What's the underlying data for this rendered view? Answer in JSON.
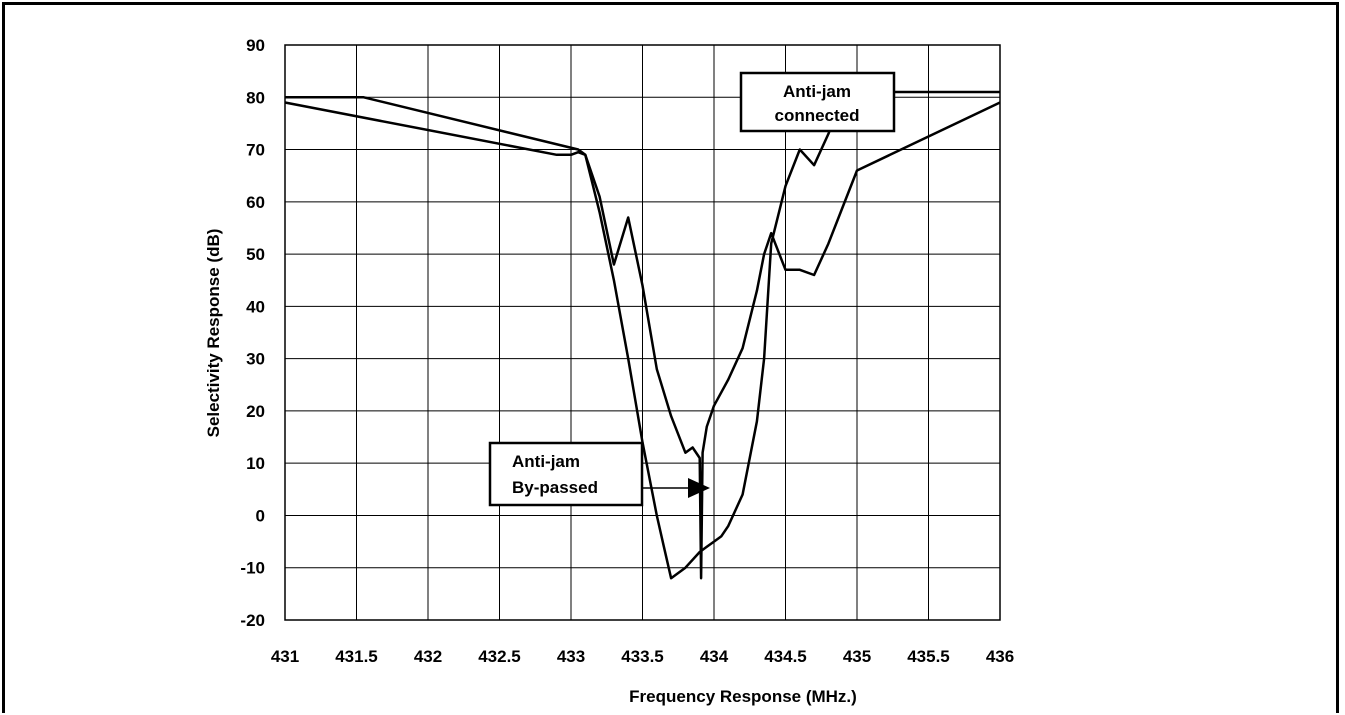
{
  "chart_data": {
    "type": "line",
    "title": "",
    "xlabel": "Frequency Response (MHz.)",
    "ylabel": "Selectivity Response (dB)",
    "xlim": [
      431,
      436
    ],
    "ylim": [
      -20,
      90
    ],
    "xticks": [
      "431",
      "431.5",
      "432",
      "432.5",
      "433",
      "433.5",
      "434",
      "434.5",
      "435",
      "435.5",
      "436"
    ],
    "yticks": [
      "90",
      "80",
      "70",
      "60",
      "50",
      "40",
      "30",
      "20",
      "10",
      "0",
      "-10",
      "-20"
    ],
    "grid": true,
    "legend": "none",
    "colors": {
      "line": "#000000",
      "grid": "#000000"
    },
    "series": [
      {
        "x": [
          431,
          431.55,
          433.05,
          433.1,
          433.2,
          433.3,
          433.4,
          433.5,
          433.6,
          433.7,
          433.8,
          433.85,
          433.9,
          433.91,
          433.92,
          433.95,
          434.0,
          434.1,
          434.2,
          434.3,
          434.35,
          434.4,
          434.5,
          434.6,
          434.7,
          434.8,
          434.9,
          435.0,
          436
        ],
        "y": [
          80,
          80,
          70,
          69,
          61,
          48,
          57,
          44,
          28,
          19,
          12,
          13,
          11,
          -12,
          12,
          17,
          21,
          26,
          32,
          43,
          50,
          54,
          47,
          47,
          46,
          52,
          59,
          66,
          79
        ]
      },
      {
        "x": [
          431,
          432.9,
          433.0,
          433.05,
          433.1,
          433.2,
          433.3,
          433.4,
          433.5,
          433.6,
          433.65,
          433.7,
          433.8,
          433.9,
          433.95,
          434.0,
          434.05,
          434.1,
          434.2,
          434.3,
          434.35,
          434.4,
          434.5,
          434.6,
          434.7,
          434.8,
          434.9,
          435.0,
          436
        ],
        "y": [
          79,
          69,
          69,
          69.5,
          69,
          58,
          45,
          30,
          14,
          0,
          -6,
          -12,
          -10,
          -7,
          -6,
          -5,
          -4,
          -2,
          4,
          18,
          30,
          52,
          63,
          70,
          67,
          73,
          80,
          81,
          81
        ]
      }
    ],
    "annotations": [
      {
        "lines": [
          "Anti-jam",
          "connected"
        ]
      },
      {
        "lines": [
          "Anti-jam",
          "By-passed"
        ]
      }
    ]
  }
}
